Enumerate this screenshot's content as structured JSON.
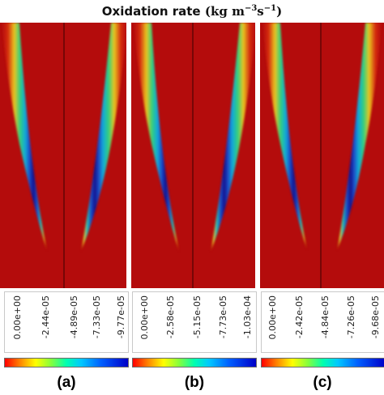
{
  "figure": {
    "title_text": "Oxidation rate",
    "title_units": {
      "open": "(",
      "kg": "kg",
      "m": "m",
      "m_exp": "−3",
      "s": "s",
      "s_exp": "−1",
      "close": ")"
    }
  },
  "colors": {
    "field_background": "#b40c0c",
    "divider": "#3a0000",
    "colormap": [
      "#ff0000",
      "#ff8000",
      "#ffff00",
      "#80ff40",
      "#00ffb0",
      "#00c8ff",
      "#0060ff",
      "#0000c8"
    ]
  },
  "panels": [
    {
      "label": "(a)",
      "colorbar_ticks": [
        "0.00e+00",
        "-2.44e-05",
        "-4.89e-05",
        "-7.33e-05",
        "-9.77e-05"
      ]
    },
    {
      "label": "(b)",
      "colorbar_ticks": [
        "0.00e+00",
        "-2.58e-05",
        "-5.15e-05",
        "-7.73e-05",
        "-1.03e-04"
      ]
    },
    {
      "label": "(c)",
      "colorbar_ticks": [
        "0.00e+00",
        "-2.42e-05",
        "-4.84e-05",
        "-7.26e-05",
        "-9.68e-05"
      ]
    }
  ]
}
